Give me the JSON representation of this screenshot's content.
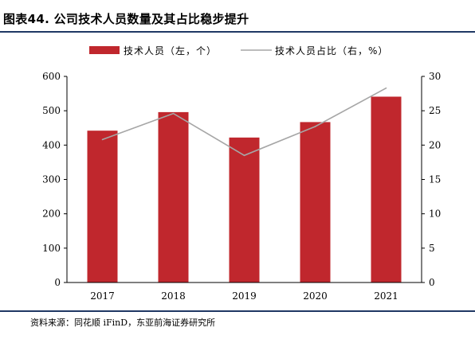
{
  "figure": {
    "title": "图表44. 公司技术人员数量及其占比稳步提升",
    "source": "资料来源：同花顺 iFinD，东亚前海证券研究所"
  },
  "colors": {
    "bar": "#c0272d",
    "line": "#a6a6a6",
    "rule": "#1f3864",
    "axis": "#000000"
  },
  "chart_data": {
    "type": "bar",
    "categories": [
      "2017",
      "2018",
      "2019",
      "2020",
      "2021"
    ],
    "series": [
      {
        "name": "技术人员（左，个）",
        "type": "bar",
        "axis": "left",
        "values": [
          442,
          496,
          422,
          467,
          541
        ]
      },
      {
        "name": "技术人员占比（右，%）",
        "type": "line",
        "axis": "right",
        "values": [
          20.8,
          24.6,
          18.5,
          22.7,
          28.3
        ]
      }
    ],
    "y_left": {
      "min": 0,
      "max": 600,
      "ticks": [
        "0",
        "100",
        "200",
        "300",
        "400",
        "500",
        "600"
      ]
    },
    "y_right": {
      "min": 0,
      "max": 30,
      "ticks": [
        "0",
        "5",
        "10",
        "15",
        "20",
        "25",
        "30"
      ]
    },
    "grid": false,
    "legend_position": "top"
  }
}
